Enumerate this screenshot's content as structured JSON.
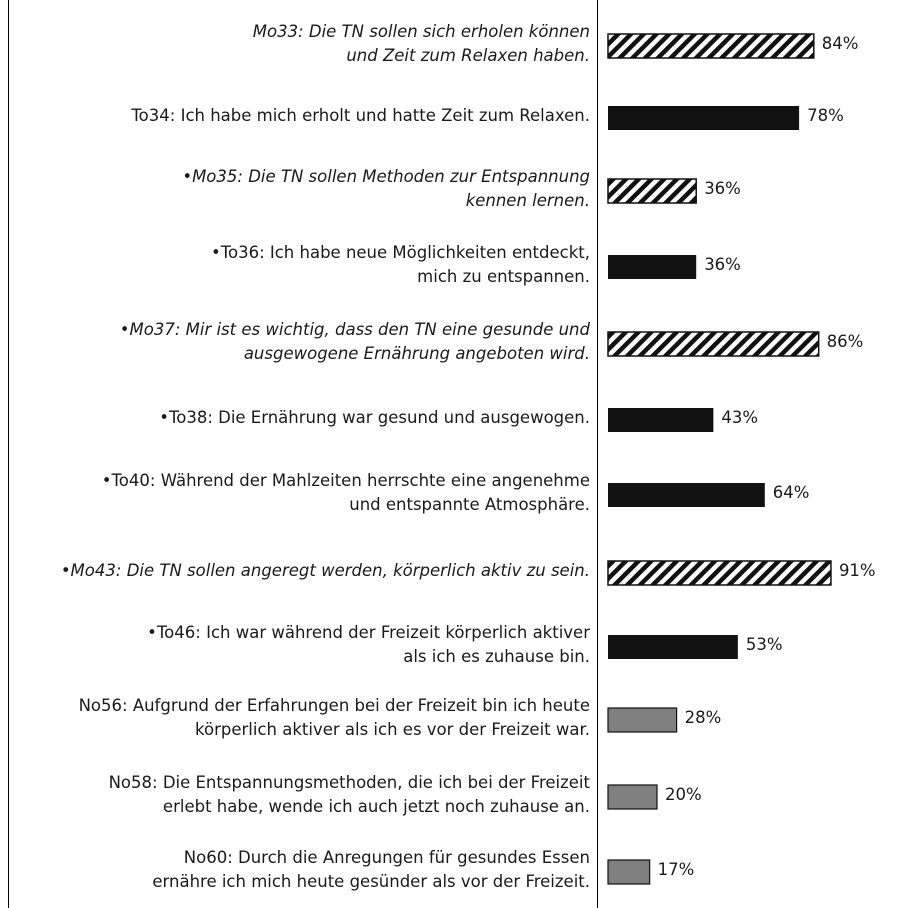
{
  "chart_data": {
    "type": "bar",
    "orientation": "horizontal",
    "unit": "%",
    "xlim": [
      0,
      100
    ],
    "grid": false,
    "legend": "none",
    "colors": {
      "M": "#111111",
      "T": "#111111",
      "N": "#808080",
      "hatch": "#111111"
    },
    "items": [
      {
        "category": "M",
        "lines": [
          "Mo33: Die TN sollen sich erholen können",
          "und Zeit zum Relaxen haben."
        ],
        "value": 84,
        "label": "84%"
      },
      {
        "category": "T",
        "lines": [
          "To34: Ich habe mich erholt und hatte Zeit zum Relaxen."
        ],
        "value": 78,
        "label": "78%"
      },
      {
        "category": "M",
        "lines": [
          "•Mo35: Die TN sollen Methoden zur Entspannung",
          "kennen lernen."
        ],
        "value": 36,
        "label": "36%"
      },
      {
        "category": "T",
        "lines": [
          "•To36: Ich habe neue Möglichkeiten entdeckt,",
          "mich zu entspannen."
        ],
        "value": 36,
        "label": "36%"
      },
      {
        "category": "M",
        "lines": [
          "•Mo37: Mir ist es wichtig, dass den TN eine gesunde und",
          "ausgewogene Ernährung angeboten wird."
        ],
        "value": 86,
        "label": "86%"
      },
      {
        "category": "T",
        "lines": [
          "•To38: Die Ernährung war gesund und ausgewogen."
        ],
        "value": 43,
        "label": "43%"
      },
      {
        "category": "T",
        "lines": [
          "•To40: Während der Mahlzeiten herrschte eine angenehme",
          "und entspannte Atmosphäre."
        ],
        "value": 64,
        "label": "64%"
      },
      {
        "category": "M",
        "lines": [
          "•Mo43: Die TN sollen angeregt werden, körperlich aktiv zu sein."
        ],
        "value": 91,
        "label": "91%"
      },
      {
        "category": "T",
        "lines": [
          "•To46: Ich war während der Freizeit körperlich aktiver",
          "als ich es zuhause bin."
        ],
        "value": 53,
        "label": "53%"
      },
      {
        "category": "N",
        "lines": [
          "No56: Aufgrund der Erfahrungen bei der Freizeit bin ich heute",
          "körperlich aktiver als ich es vor der Freizeit war."
        ],
        "value": 28,
        "label": "28%"
      },
      {
        "category": "N",
        "lines": [
          "No58: Die Entspannungsmethoden, die ich bei der Freizeit",
          "erlebt habe, wende ich auch jetzt noch zuhause an."
        ],
        "value": 20,
        "label": "20%"
      },
      {
        "category": "N",
        "lines": [
          "No60: Durch die Anregungen für gesundes Essen",
          "ernähre ich mich heute gesünder als vor der Freizeit."
        ],
        "value": 17,
        "label": "17%"
      }
    ]
  }
}
